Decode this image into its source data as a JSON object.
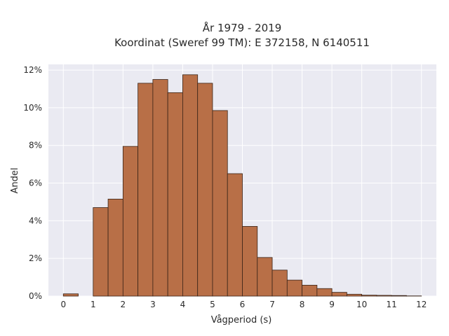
{
  "chart_data": {
    "type": "bar",
    "title": [
      "År 1979 - 2019",
      "Koordinat (Sweref 99 TM): E 372158, N 6140511"
    ],
    "xlabel": "Vågperiod (s)",
    "ylabel": "Andel",
    "xlim": [
      -0.5,
      12.5
    ],
    "ylim": [
      0,
      12.3
    ],
    "x_ticks": [
      0,
      1,
      2,
      3,
      4,
      5,
      6,
      7,
      8,
      9,
      10,
      11,
      12
    ],
    "x_tick_labels": [
      "0",
      "1",
      "2",
      "3",
      "4",
      "5",
      "6",
      "7",
      "8",
      "9",
      "10",
      "11",
      "12"
    ],
    "y_ticks": [
      0,
      2,
      4,
      6,
      8,
      10,
      12
    ],
    "y_tick_labels": [
      "0%",
      "2%",
      "4%",
      "6%",
      "8%",
      "10%",
      "12%"
    ],
    "bin_width": 0.5,
    "bin_starts": [
      0,
      0.5,
      1,
      1.5,
      2,
      2.5,
      3,
      3.5,
      4,
      4.5,
      5,
      5.5,
      6,
      6.5,
      7,
      7.5,
      8,
      8.5,
      9,
      9.5,
      10,
      10.5,
      11,
      11.5
    ],
    "values": [
      0.12,
      0,
      4.7,
      5.15,
      7.95,
      11.3,
      11.5,
      10.8,
      11.75,
      11.3,
      9.85,
      6.5,
      3.7,
      2.05,
      1.38,
      0.85,
      0.58,
      0.4,
      0.2,
      0.1,
      0.05,
      0.04,
      0.03,
      0.01
    ],
    "unit": "%",
    "grid": true,
    "colors": {
      "bar_fill": "#b86f47",
      "bar_edge": "#3a2418",
      "plot_bg": "#eaeaf2",
      "grid": "#ffffff"
    }
  }
}
